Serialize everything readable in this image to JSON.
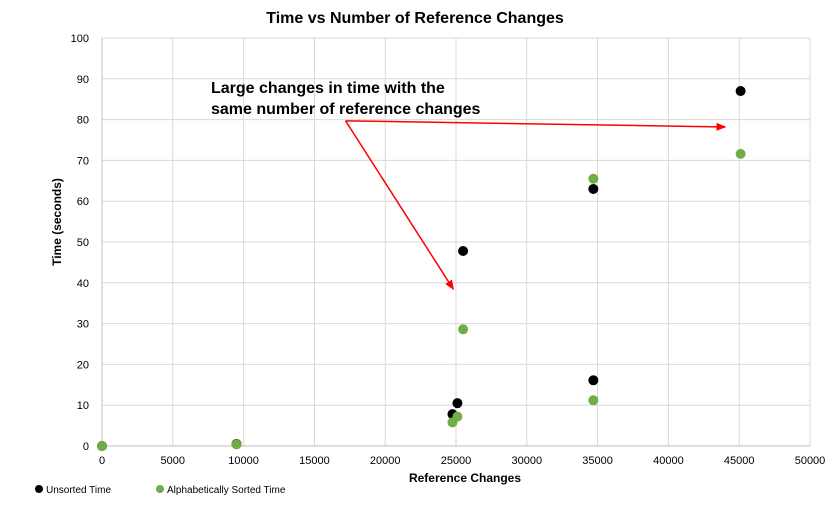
{
  "chart_data": {
    "type": "scatter",
    "title": "Time vs Number of Reference Changes",
    "xlabel": "Reference Changes",
    "ylabel": "Time (seconds)",
    "xlim": [
      0,
      50000
    ],
    "ylim": [
      0,
      100
    ],
    "x_ticks": [
      "0",
      "5000",
      "10000",
      "15000",
      "20000",
      "25000",
      "30000",
      "35000",
      "40000",
      "45000",
      "50000"
    ],
    "y_ticks": [
      "0",
      "10",
      "20",
      "30",
      "40",
      "50",
      "60",
      "70",
      "80",
      "90",
      "100"
    ],
    "grid": true,
    "legend_position": "bottom-left",
    "series": [
      {
        "name": "Unsorted Time",
        "color": "#000000",
        "points": [
          {
            "x": 0,
            "y": 0
          },
          {
            "x": 9500,
            "y": 0.5
          },
          {
            "x": 24750,
            "y": 7.8
          },
          {
            "x": 25100,
            "y": 10.5
          },
          {
            "x": 25500,
            "y": 47.8
          },
          {
            "x": 34700,
            "y": 16.1
          },
          {
            "x": 34700,
            "y": 63
          },
          {
            "x": 45100,
            "y": 87
          }
        ]
      },
      {
        "name": "Alphabetically Sorted Time",
        "color": "#70AD47",
        "points": [
          {
            "x": 0,
            "y": 0
          },
          {
            "x": 9500,
            "y": 0.4
          },
          {
            "x": 24750,
            "y": 5.8
          },
          {
            "x": 25100,
            "y": 7.2
          },
          {
            "x": 25500,
            "y": 28.6
          },
          {
            "x": 34700,
            "y": 11.2
          },
          {
            "x": 34700,
            "y": 65.5
          },
          {
            "x": 45100,
            "y": 71.6
          }
        ]
      }
    ],
    "annotation": {
      "lines": [
        "Large changes in time with the",
        "same number of reference changes"
      ],
      "color": "#FF0000",
      "arrows": [
        {
          "from": {
            "x": 17200,
            "y": 79.7
          },
          "to": {
            "x": 44000,
            "y": 78.2
          }
        },
        {
          "from": {
            "x": 17200,
            "y": 79.7
          },
          "to": {
            "x": 24800,
            "y": 38.5
          }
        }
      ]
    }
  }
}
